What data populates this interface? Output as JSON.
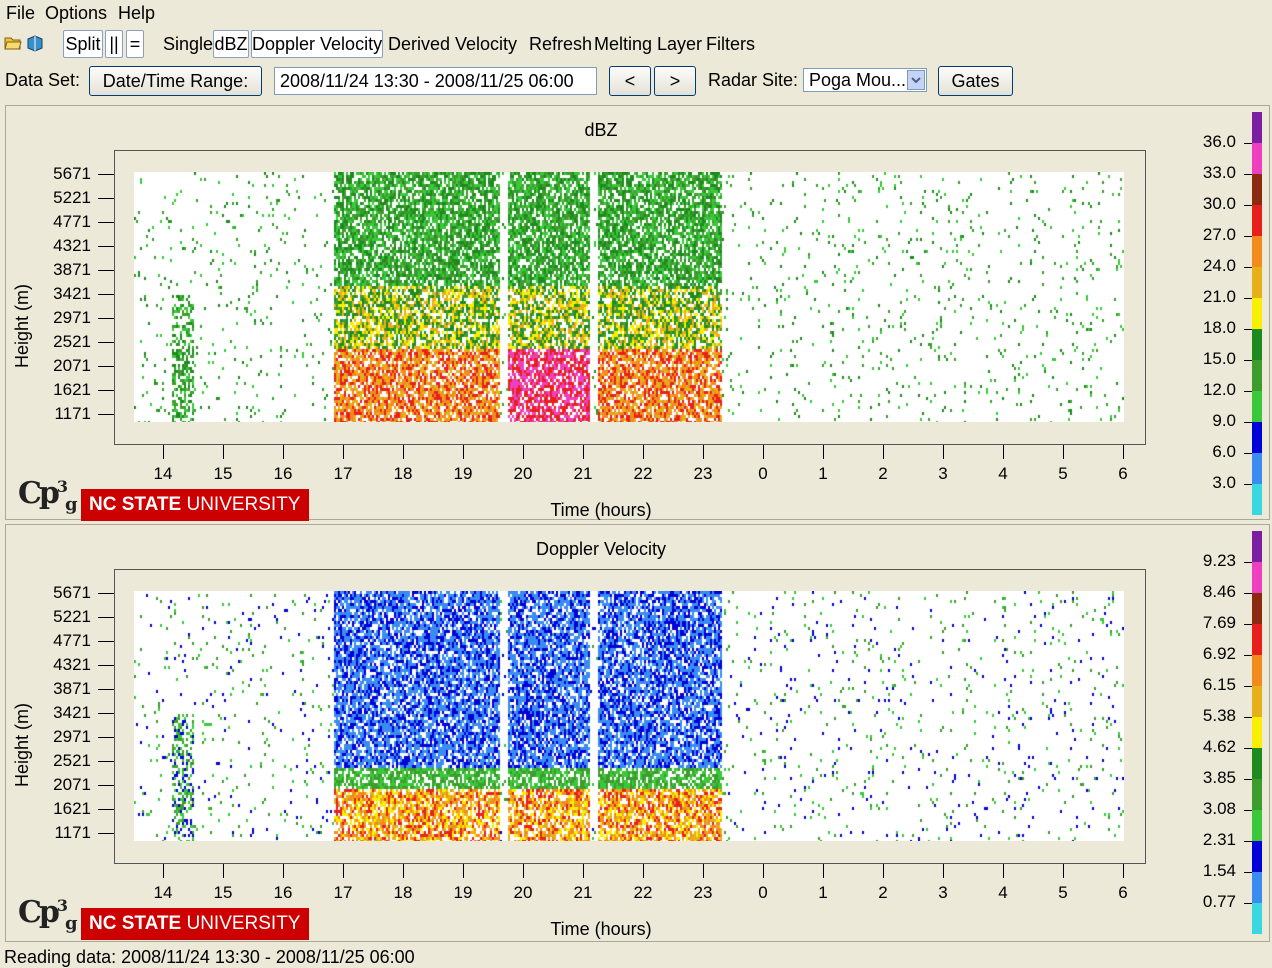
{
  "menu": {
    "items": [
      "File",
      "Options",
      "Help"
    ]
  },
  "toolbar": {
    "split_label": "Split",
    "vertical_label": "||",
    "horizontal_label": "=",
    "single_label": "Single",
    "dbz_label": "dBZ",
    "doppler_label": "Doppler Velocity",
    "derived_label": "Derived Velocity",
    "refresh_label": "Refresh",
    "melting_label": "Melting Layer",
    "filters_label": "Filters",
    "icons": [
      "open-folder-icon",
      "book-icon"
    ]
  },
  "dataset": {
    "label": "Data Set:",
    "range_button": "Date/Time Range:",
    "range_value": "2008/11/24 13:30 - 2008/11/25 06:00",
    "prev_label": "<",
    "next_label": ">",
    "site_label": "Radar Site:",
    "site_value": "Poga Mou...",
    "gates_label": "Gates"
  },
  "panels": [
    {
      "title": "dBZ",
      "ylabel": "Height (m)",
      "xlabel": "Time (hours)",
      "yticks": [
        "5671",
        "5221",
        "4771",
        "4321",
        "3871",
        "3421",
        "2971",
        "2521",
        "2071",
        "1621",
        "1171"
      ],
      "xticks": [
        "14",
        "15",
        "16",
        "17",
        "18",
        "19",
        "20",
        "21",
        "22",
        "23",
        "0",
        "1",
        "2",
        "3",
        "4",
        "5",
        "6"
      ],
      "colorbar_labels": [
        "36.0",
        "33.0",
        "30.0",
        "27.0",
        "24.0",
        "21.0",
        "18.0",
        "15.0",
        "12.0",
        "9.0",
        "6.0",
        "3.0"
      ]
    },
    {
      "title": "Doppler Velocity",
      "ylabel": "Height (m)",
      "xlabel": "Time (hours)",
      "yticks": [
        "5671",
        "5221",
        "4771",
        "4321",
        "3871",
        "3421",
        "2971",
        "2521",
        "2071",
        "1621",
        "1171"
      ],
      "xticks": [
        "14",
        "15",
        "16",
        "17",
        "18",
        "19",
        "20",
        "21",
        "22",
        "23",
        "0",
        "1",
        "2",
        "3",
        "4",
        "5",
        "6"
      ],
      "colorbar_labels": [
        "9.23",
        "8.46",
        "7.69",
        "6.92",
        "6.15",
        "5.38",
        "4.62",
        "3.85",
        "3.08",
        "2.31",
        "1.54",
        "0.77"
      ]
    }
  ],
  "colorbar_colors": [
    "#7a1fa2",
    "#ee3fbf",
    "#8b2a10",
    "#e8201c",
    "#f28a1e",
    "#e6b018",
    "#f8f000",
    "#1e8a1e",
    "#3c9c2c",
    "#3ac83a",
    "#0000d8",
    "#3a8cf0",
    "#38d8e0"
  ],
  "logo": {
    "cp_text": "Cp",
    "superscript": "3",
    "subscript": "g",
    "university": "NC STATE UNIVERSITY"
  },
  "status": "Reading data: 2008/11/24 13:30 - 2008/11/25 06:00"
}
